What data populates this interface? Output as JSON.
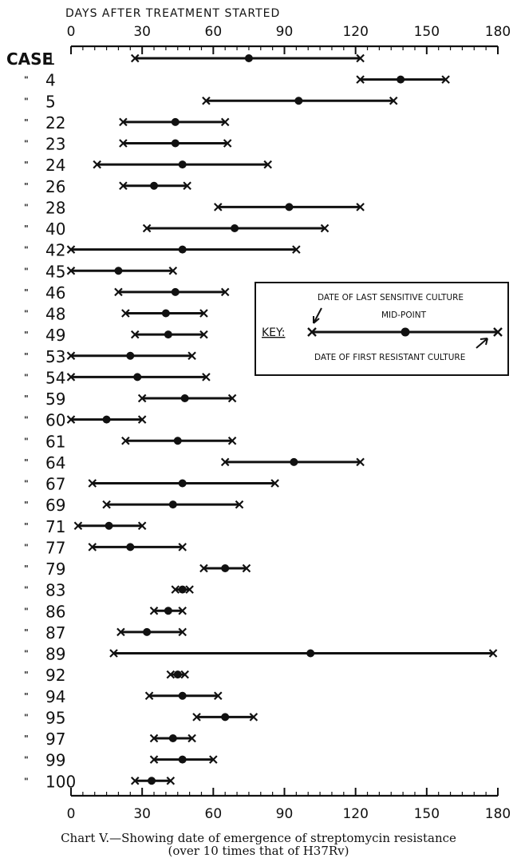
{
  "chart_data": {
    "type": "range",
    "axis_title": "DAYS AFTER TREATMENT STARTED",
    "row_header": "CASE",
    "ditto_mark": "\"",
    "x_ticks": [
      0,
      30,
      60,
      90,
      120,
      150,
      180
    ],
    "xlim": [
      0,
      180
    ],
    "series": [
      {
        "name": "DATE OF LAST SENSITIVE CULTURE"
      },
      {
        "name": "MID-POINT"
      },
      {
        "name": "DATE OF FIRST RESISTANT CULTURE"
      }
    ],
    "rows": [
      {
        "case": "1",
        "start": 27,
        "mid": 75,
        "end": 122
      },
      {
        "case": "4",
        "start": 122,
        "mid": 139,
        "end": 158
      },
      {
        "case": "5",
        "start": 57,
        "mid": 96,
        "end": 136
      },
      {
        "case": "22",
        "start": 22,
        "mid": 44,
        "end": 65
      },
      {
        "case": "23",
        "start": 22,
        "mid": 44,
        "end": 66
      },
      {
        "case": "24",
        "start": 11,
        "mid": 47,
        "end": 83
      },
      {
        "case": "26",
        "start": 22,
        "mid": 35,
        "end": 49
      },
      {
        "case": "28",
        "start": 62,
        "mid": 92,
        "end": 122
      },
      {
        "case": "40",
        "start": 32,
        "mid": 69,
        "end": 107
      },
      {
        "case": "42",
        "start": 0,
        "mid": 47,
        "end": 95
      },
      {
        "case": "45",
        "start": 0,
        "mid": 20,
        "end": 43
      },
      {
        "case": "46",
        "start": 20,
        "mid": 44,
        "end": 65
      },
      {
        "case": "48",
        "start": 23,
        "mid": 40,
        "end": 56
      },
      {
        "case": "49",
        "start": 27,
        "mid": 41,
        "end": 56
      },
      {
        "case": "53",
        "start": 0,
        "mid": 25,
        "end": 51
      },
      {
        "case": "54",
        "start": 0,
        "mid": 28,
        "end": 57
      },
      {
        "case": "59",
        "start": 30,
        "mid": 48,
        "end": 68
      },
      {
        "case": "60",
        "start": 0,
        "mid": 15,
        "end": 30
      },
      {
        "case": "61",
        "start": 23,
        "mid": 45,
        "end": 68
      },
      {
        "case": "64",
        "start": 65,
        "mid": 94,
        "end": 122
      },
      {
        "case": "67",
        "start": 9,
        "mid": 47,
        "end": 86
      },
      {
        "case": "69",
        "start": 15,
        "mid": 43,
        "end": 71
      },
      {
        "case": "71",
        "start": 3,
        "mid": 16,
        "end": 30
      },
      {
        "case": "77",
        "start": 9,
        "mid": 25,
        "end": 47
      },
      {
        "case": "79",
        "start": 56,
        "mid": 65,
        "end": 74
      },
      {
        "case": "83",
        "start": 44,
        "mid": 47,
        "end": 50
      },
      {
        "case": "86",
        "start": 35,
        "mid": 41,
        "end": 47
      },
      {
        "case": "87",
        "start": 21,
        "mid": 32,
        "end": 47
      },
      {
        "case": "89",
        "start": 18,
        "mid": 101,
        "end": 178
      },
      {
        "case": "92",
        "start": 42,
        "mid": 45,
        "end": 48
      },
      {
        "case": "94",
        "start": 33,
        "mid": 47,
        "end": 62
      },
      {
        "case": "95",
        "start": 53,
        "mid": 65,
        "end": 77
      },
      {
        "case": "97",
        "start": 35,
        "mid": 43,
        "end": 51
      },
      {
        "case": "99",
        "start": 35,
        "mid": 47,
        "end": 60
      },
      {
        "case": "100",
        "start": 27,
        "mid": 34,
        "end": 42
      }
    ],
    "key": {
      "title": "KEY:",
      "last_sensitive": "DATE OF LAST SENSITIVE CULTURE",
      "mid_point": "MID-POINT",
      "first_resistant": "DATE OF FIRST RESISTANT CULTURE"
    },
    "caption_line1": "Chart V.—Showing date of emergence of streptomycin resistance",
    "caption_line2": "(over 10 times that of H37Rv)"
  }
}
